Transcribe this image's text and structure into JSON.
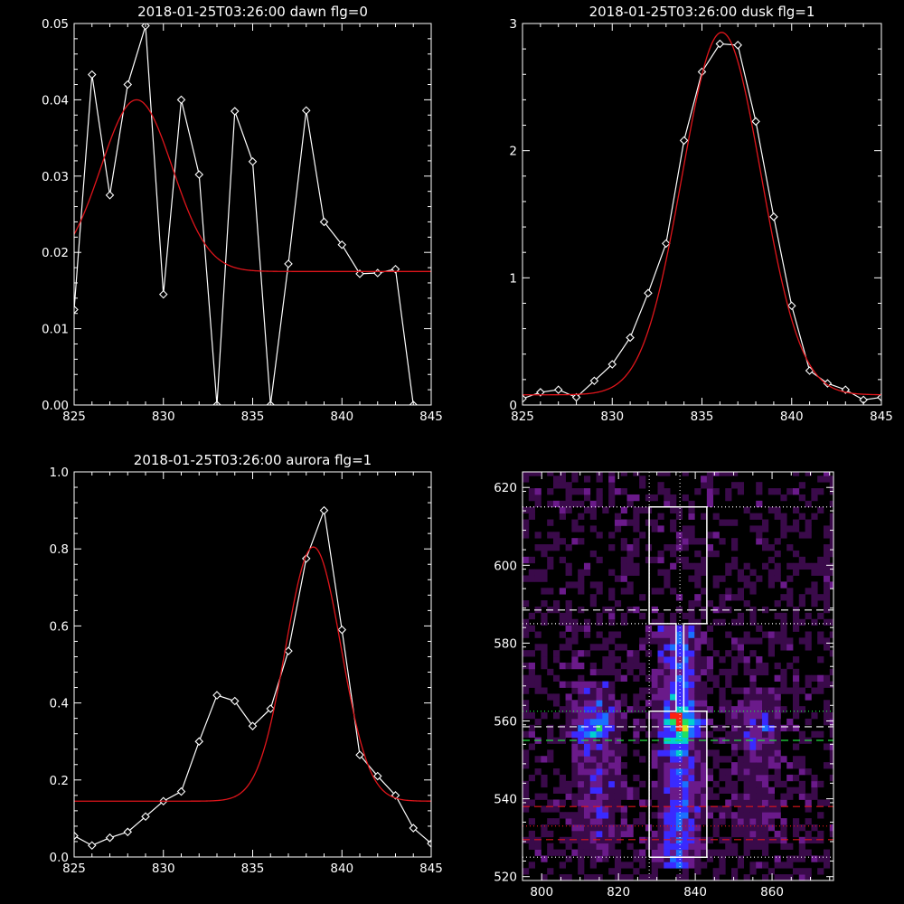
{
  "chart_data": [
    {
      "type": "line",
      "title": "2018-01-25T03:26:00 dawn flg=0",
      "xlim": [
        825,
        845
      ],
      "ylim": [
        0,
        0.05
      ],
      "x_ticks": [
        "825",
        "830",
        "835",
        "840",
        "845"
      ],
      "y_ticks": [
        "0.00",
        "0.01",
        "0.02",
        "0.03",
        "0.04",
        "0.05"
      ],
      "series": [
        {
          "color": "#ffffff",
          "markers": "diamond",
          "x": [
            825,
            826,
            827,
            828,
            829,
            830,
            831,
            832,
            833,
            834,
            835,
            836,
            837,
            838,
            839,
            840,
            841,
            842,
            843,
            844
          ],
          "y": [
            0.0125,
            0.0433,
            0.0275,
            0.042,
            0.0497,
            0.0145,
            0.04,
            0.0302,
            0.0,
            0.0385,
            0.0319,
            0.0,
            0.0185,
            0.0386,
            0.024,
            0.021,
            0.0172,
            0.0173,
            0.0178,
            0.0
          ]
        },
        {
          "color": "#e0151b",
          "fit": "gaussian",
          "amplitude": 0.0225,
          "center": 828.5,
          "sigma": 2.0,
          "offset": 0.0175,
          "x_range": [
            825,
            845
          ]
        }
      ]
    },
    {
      "type": "line",
      "title": "2018-01-25T03:26:00 dusk flg=1",
      "xlim": [
        825,
        845
      ],
      "ylim": [
        0,
        3
      ],
      "x_ticks": [
        "825",
        "830",
        "835",
        "840",
        "845"
      ],
      "y_ticks": [
        "0",
        "1",
        "2",
        "3"
      ],
      "series": [
        {
          "color": "#ffffff",
          "markers": "diamond",
          "x": [
            825,
            826,
            827,
            828,
            829,
            830,
            831,
            832,
            833,
            834,
            835,
            836,
            837,
            838,
            839,
            840,
            841,
            842,
            843,
            844,
            845
          ],
          "y": [
            0.05,
            0.1,
            0.12,
            0.06,
            0.19,
            0.32,
            0.53,
            0.88,
            1.27,
            2.08,
            2.62,
            2.84,
            2.83,
            2.23,
            1.48,
            0.78,
            0.27,
            0.17,
            0.12,
            0.04,
            0.06
          ]
        },
        {
          "color": "#e0151b",
          "fit": "gaussian",
          "amplitude": 2.85,
          "center": 836.1,
          "sigma": 2.2,
          "offset": 0.08,
          "x_range": [
            825,
            845
          ]
        }
      ]
    },
    {
      "type": "line",
      "title": "2018-01-25T03:26:00 aurora flg=1",
      "xlim": [
        825,
        845
      ],
      "ylim": [
        0,
        1.0
      ],
      "x_ticks": [
        "825",
        "830",
        "835",
        "840",
        "845"
      ],
      "y_ticks": [
        "0.0",
        "0.2",
        "0.4",
        "0.6",
        "0.8",
        "1.0"
      ],
      "series": [
        {
          "color": "#ffffff",
          "markers": "diamond",
          "x": [
            825,
            826,
            827,
            828,
            829,
            830,
            831,
            832,
            833,
            834,
            835,
            836,
            837,
            838,
            839,
            840,
            841,
            842,
            843,
            844,
            845
          ],
          "y": [
            0.055,
            0.03,
            0.05,
            0.065,
            0.105,
            0.145,
            0.17,
            0.3,
            0.42,
            0.405,
            0.34,
            0.385,
            0.535,
            0.775,
            0.9,
            0.59,
            0.265,
            0.21,
            0.16,
            0.075,
            0.035
          ]
        },
        {
          "color": "#e0151b",
          "fit": "gaussian",
          "amplitude": 0.66,
          "center": 838.4,
          "sigma": 1.55,
          "offset": 0.145,
          "x_range": [
            825,
            845
          ]
        }
      ]
    },
    {
      "type": "heatmap",
      "title": "",
      "xlim": [
        795,
        876
      ],
      "ylim": [
        519,
        624
      ],
      "x_ticks": [
        "800",
        "820",
        "840",
        "860"
      ],
      "y_ticks": [
        "520",
        "540",
        "560",
        "580",
        "600",
        "620"
      ],
      "background": "#000000",
      "colormap": [
        "#000000",
        "#3a0a4a",
        "#6a1a8a",
        "#3a2aff",
        "#1a70ff",
        "#00d0d0",
        "#20e060",
        "#d8e820",
        "#ff2010"
      ],
      "columns": [
        {
          "x_center": 814,
          "y_range": [
            525,
            570
          ],
          "peak": 559,
          "strength": 0.55,
          "halfwidth": 4
        },
        {
          "x_center": 836,
          "y_range": [
            522,
            585
          ],
          "peak": 559,
          "strength": 1.0,
          "halfwidth": 3.5
        },
        {
          "x_center": 856,
          "y_range": [
            528,
            568
          ],
          "peak": 559,
          "strength": 0.3,
          "halfwidth": 5
        }
      ],
      "outline": {
        "color": "#ffffff",
        "vertices": [
          [
            828,
            525
          ],
          [
            828,
            562.5
          ],
          [
            835,
            562.5
          ],
          [
            835,
            585
          ],
          [
            828,
            585
          ],
          [
            828,
            615
          ],
          [
            843,
            615
          ],
          [
            843,
            585
          ],
          [
            837,
            585
          ],
          [
            837,
            562.5
          ],
          [
            843,
            562.5
          ],
          [
            843,
            525
          ],
          [
            828,
            525
          ]
        ]
      },
      "hlines": [
        {
          "y": 615,
          "color": "#ffffff",
          "style": "dotted"
        },
        {
          "y": 588.5,
          "color": "#ffffff",
          "style": "dashed"
        },
        {
          "y": 585,
          "color": "#ffffff",
          "style": "dotted"
        },
        {
          "y": 562.5,
          "color": "#20e040",
          "style": "dotted"
        },
        {
          "y": 558.5,
          "color": "#ffffff",
          "style": "dashed"
        },
        {
          "y": 555,
          "color": "#20e040",
          "style": "dashed"
        },
        {
          "y": 538,
          "color": "#e0151b",
          "style": "dashed"
        },
        {
          "y": 533,
          "color": "#e0151b",
          "style": "dotted"
        },
        {
          "y": 529.5,
          "color": "#e0151b",
          "style": "dashed"
        },
        {
          "y": 525,
          "color": "#ffffff",
          "style": "dotted"
        }
      ],
      "vlines": [
        {
          "x": 828,
          "color": "#ffffff",
          "style": "dotted"
        },
        {
          "x": 836,
          "color": "#ffffff",
          "style": "dotted"
        }
      ]
    }
  ]
}
